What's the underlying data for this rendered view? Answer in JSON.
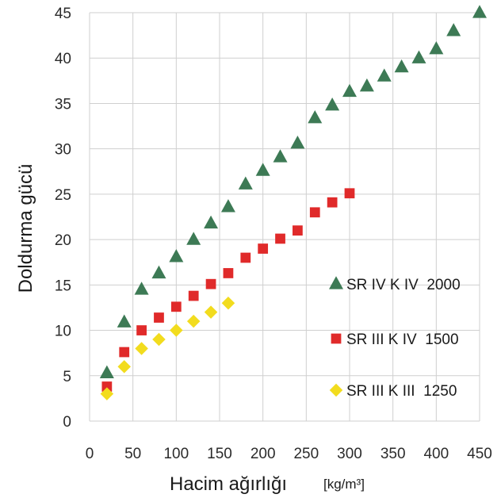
{
  "chart_data": {
    "type": "scatter",
    "title": "",
    "xlabel": "Hacim ağırlığı",
    "xlabel_unit": "[kg/m³]",
    "ylabel": "Doldurma gücü",
    "xlim": [
      0,
      450
    ],
    "ylim": [
      0,
      45
    ],
    "x_ticks": [
      0,
      50,
      100,
      150,
      200,
      250,
      300,
      350,
      400,
      450
    ],
    "y_ticks": [
      0,
      5,
      10,
      15,
      20,
      25,
      30,
      35,
      40,
      45
    ],
    "grid": true,
    "legend_position": "right",
    "series": [
      {
        "name": "SR IV K IV  2000",
        "marker": "triangle",
        "color": "#3d7a55",
        "x": [
          20,
          40,
          60,
          80,
          100,
          120,
          140,
          160,
          180,
          200,
          220,
          240,
          260,
          280,
          300,
          320,
          340,
          360,
          380,
          400,
          420,
          450
        ],
        "y": [
          5.3,
          10.9,
          14.5,
          16.3,
          18.1,
          20,
          21.8,
          23.6,
          26.1,
          27.6,
          29.1,
          30.6,
          33.4,
          34.8,
          36.3,
          36.9,
          38,
          39,
          40,
          41,
          43,
          45
        ]
      },
      {
        "name": "SR III K IV  1500",
        "marker": "square",
        "color": "#e02a2a",
        "x": [
          20,
          40,
          60,
          80,
          100,
          120,
          140,
          160,
          180,
          200,
          220,
          240,
          260,
          280,
          300
        ],
        "y": [
          3.8,
          7.6,
          10,
          11.4,
          12.6,
          13.8,
          15.1,
          16.3,
          18,
          19,
          20.1,
          21,
          23,
          24.1,
          25.1
        ]
      },
      {
        "name": "SR III K III  1250",
        "marker": "diamond",
        "color": "#f2dc1e",
        "x": [
          20,
          40,
          60,
          80,
          100,
          120,
          140,
          160
        ],
        "y": [
          3,
          6,
          8,
          9,
          10,
          11,
          12,
          13
        ]
      }
    ]
  }
}
